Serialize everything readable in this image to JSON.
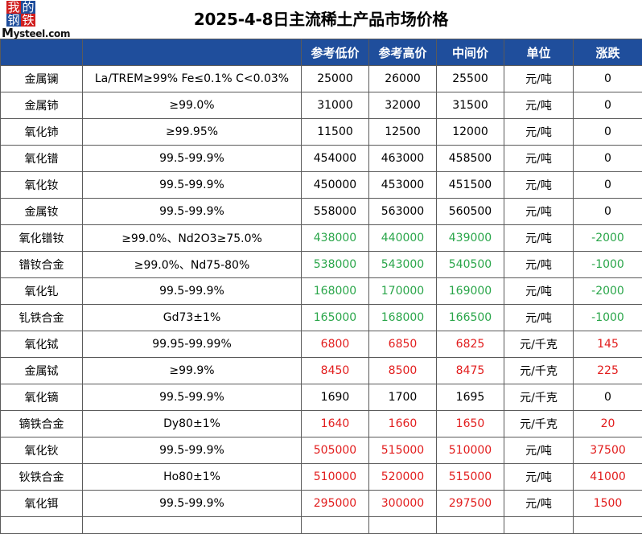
{
  "logo": {
    "chars": [
      "我",
      "的",
      "钢",
      "铁"
    ],
    "brand": "Mysteel.com"
  },
  "title": "2025-4-8日主流稀土产品市场价格",
  "headers": [
    "",
    "",
    "参考低价",
    "参考高价",
    "中间价",
    "单位",
    "涨跌"
  ],
  "colors": {
    "header_bg": "#1f4e9c",
    "up": "#e21d1d",
    "down": "#2aa64a",
    "flat": "#000000"
  },
  "rows": [
    {
      "name": "金属镧",
      "spec": "La/TREM≥99% Fe≤0.1% C<0.03%",
      "low": "25000",
      "high": "26000",
      "mid": "25500",
      "unit": "元/吨",
      "change": "0",
      "trend": "black"
    },
    {
      "name": "金属铈",
      "spec": "≥99.0%",
      "low": "31000",
      "high": "32000",
      "mid": "31500",
      "unit": "元/吨",
      "change": "0",
      "trend": "black"
    },
    {
      "name": "氧化铈",
      "spec": "≥99.95%",
      "low": "11500",
      "high": "12500",
      "mid": "12000",
      "unit": "元/吨",
      "change": "0",
      "trend": "black"
    },
    {
      "name": "氧化镨",
      "spec": "99.5-99.9%",
      "low": "454000",
      "high": "463000",
      "mid": "458500",
      "unit": "元/吨",
      "change": "0",
      "trend": "black"
    },
    {
      "name": "氧化钕",
      "spec": "99.5-99.9%",
      "low": "450000",
      "high": "453000",
      "mid": "451500",
      "unit": "元/吨",
      "change": "0",
      "trend": "black"
    },
    {
      "name": "金属钕",
      "spec": "99.5-99.9%",
      "low": "558000",
      "high": "563000",
      "mid": "560500",
      "unit": "元/吨",
      "change": "0",
      "trend": "black"
    },
    {
      "name": "氧化镨钕",
      "spec": "≥99.0%、Nd2O3≥75.0%",
      "low": "438000",
      "high": "440000",
      "mid": "439000",
      "unit": "元/吨",
      "change": "-2000",
      "trend": "green"
    },
    {
      "name": "镨钕合金",
      "spec": "≥99.0%、Nd75-80%",
      "low": "538000",
      "high": "543000",
      "mid": "540500",
      "unit": "元/吨",
      "change": "-1000",
      "trend": "green"
    },
    {
      "name": "氧化钆",
      "spec": "99.5-99.9%",
      "low": "168000",
      "high": "170000",
      "mid": "169000",
      "unit": "元/吨",
      "change": "-2000",
      "trend": "green"
    },
    {
      "name": "钆铁合金",
      "spec": "Gd73±1%",
      "low": "165000",
      "high": "168000",
      "mid": "166500",
      "unit": "元/吨",
      "change": "-1000",
      "trend": "green"
    },
    {
      "name": "氧化铽",
      "spec": "99.95-99.99%",
      "low": "6800",
      "high": "6850",
      "mid": "6825",
      "unit": "元/千克",
      "change": "145",
      "trend": "red"
    },
    {
      "name": "金属铽",
      "spec": "≥99.9%",
      "low": "8450",
      "high": "8500",
      "mid": "8475",
      "unit": "元/千克",
      "change": "225",
      "trend": "red"
    },
    {
      "name": "氧化镝",
      "spec": "99.5-99.9%",
      "low": "1690",
      "high": "1700",
      "mid": "1695",
      "unit": "元/千克",
      "change": "0",
      "trend": "black"
    },
    {
      "name": "镝铁合金",
      "spec": "Dy80±1%",
      "low": "1640",
      "high": "1660",
      "mid": "1650",
      "unit": "元/千克",
      "change": "20",
      "trend": "red"
    },
    {
      "name": "氧化钬",
      "spec": "99.5-99.9%",
      "low": "505000",
      "high": "515000",
      "mid": "510000",
      "unit": "元/吨",
      "change": "37500",
      "trend": "red"
    },
    {
      "name": "钬铁合金",
      "spec": "Ho80±1%",
      "low": "510000",
      "high": "520000",
      "mid": "515000",
      "unit": "元/吨",
      "change": "41000",
      "trend": "red"
    },
    {
      "name": "氧化铒",
      "spec": "99.5-99.9%",
      "low": "295000",
      "high": "300000",
      "mid": "297500",
      "unit": "元/吨",
      "change": "1500",
      "trend": "red"
    }
  ]
}
